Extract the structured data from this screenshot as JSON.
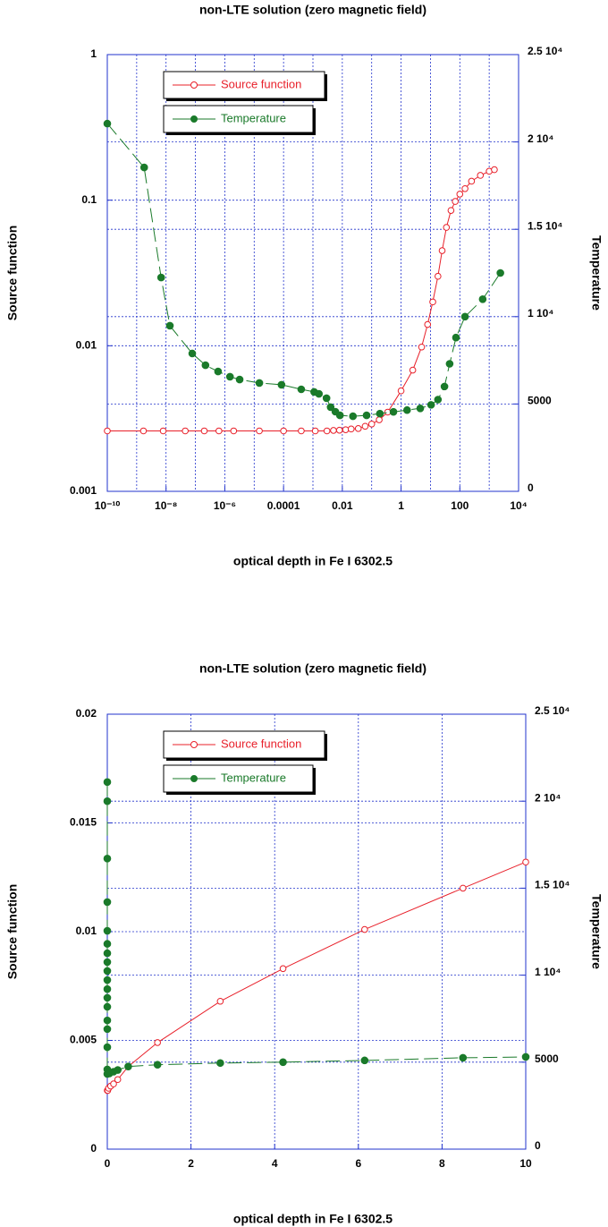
{
  "chart_data": [
    {
      "type": "line",
      "title": "non-LTE solution (zero magnetic field)",
      "xlabel": "optical depth in Fe I 6302.5",
      "ylabel": "Source function",
      "y2label": "Temperature",
      "xlog": true,
      "ylog": true,
      "grid": true,
      "legend": "upper left",
      "xlim": [
        1e-10,
        10000
      ],
      "xticks": [
        {
          "value": 1e-10,
          "label": "10⁻¹⁰"
        },
        {
          "value": 1e-08,
          "label": "10⁻⁸"
        },
        {
          "value": 1e-06,
          "label": "10⁻⁶"
        },
        0.0001,
        0.01,
        1,
        100,
        {
          "value": 10000,
          "label": "10⁴"
        }
      ],
      "ylim": [
        0.001,
        1
      ],
      "yticks": [
        0.001,
        0.01,
        0.1,
        1
      ],
      "y2lim": [
        0,
        25000
      ],
      "y2ticks": [
        0,
        5000,
        {
          "value": 10000,
          "label": "1 10⁴"
        },
        {
          "value": 15000,
          "label": "1.5 10⁴"
        },
        {
          "value": 20000,
          "label": "2 10⁴"
        },
        {
          "value": 25000,
          "label": "2.5 10⁴"
        }
      ],
      "series": [
        {
          "name": "Source function",
          "color": "#e8202a",
          "marker": "open-circle",
          "line_style": "solid",
          "x": [
            1e-10,
            1.7e-09,
            8e-09,
            4.5e-08,
            2e-07,
            6.3e-07,
            2e-06,
            1.5e-05,
            0.0001,
            0.0004,
            0.0012,
            0.003,
            0.005,
            0.008,
            0.013,
            0.02,
            0.035,
            0.06,
            0.1,
            0.18,
            0.35,
            1,
            2.5,
            5,
            8,
            12,
            18,
            25,
            35,
            50,
            70,
            100,
            150,
            250,
            500,
            1000,
            1500
          ],
          "values": [
            0.0026,
            0.0026,
            0.0026,
            0.0026,
            0.0026,
            0.0026,
            0.0026,
            0.0026,
            0.0026,
            0.0026,
            0.0026,
            0.0026,
            0.00262,
            0.00263,
            0.00265,
            0.00268,
            0.0027,
            0.0028,
            0.0029,
            0.0031,
            0.0035,
            0.0049,
            0.0068,
            0.0098,
            0.014,
            0.02,
            0.03,
            0.045,
            0.065,
            0.085,
            0.098,
            0.11,
            0.12,
            0.135,
            0.148,
            0.158,
            0.162
          ]
        },
        {
          "name": "Temperature",
          "color": "#1a7a2a",
          "marker": "filled-circle",
          "line_style": "dashed",
          "axis": "y2",
          "x": [
            1e-10,
            1.8e-09,
            6.8e-09,
            1.35e-08,
            7.8e-08,
            2.2e-07,
            5.9e-07,
            1.5e-06,
            3.2e-06,
            1.5e-05,
            8.5e-05,
            0.0004,
            0.0011,
            0.0016,
            0.0029,
            0.004,
            0.0058,
            0.0083,
            0.023,
            0.067,
            0.19,
            0.55,
            1.6,
            4.5,
            10.5,
            18,
            30,
            45,
            74,
            150,
            600,
            2400
          ],
          "values": [
            21050,
            18540,
            12240,
            9480,
            7890,
            7220,
            6860,
            6560,
            6400,
            6200,
            6100,
            5840,
            5690,
            5580,
            5330,
            4820,
            4560,
            4350,
            4300,
            4350,
            4450,
            4550,
            4650,
            4750,
            4950,
            5250,
            6000,
            7300,
            8800,
            10000,
            11000,
            12500
          ]
        }
      ]
    },
    {
      "type": "line",
      "title": "non-LTE solution (zero magnetic field)",
      "xlabel": "optical depth in Fe I 6302.5",
      "ylabel": "Source function",
      "y2label": "Temperature",
      "xlog": false,
      "ylog": false,
      "grid": true,
      "legend": "upper left",
      "xlim": [
        0,
        10
      ],
      "xticks": [
        0,
        2,
        4,
        6,
        8,
        10
      ],
      "ylim": [
        0,
        0.02
      ],
      "yticks": [
        0,
        0.005,
        0.01,
        0.015,
        0.02
      ],
      "y2lim": [
        0,
        25000
      ],
      "y2ticks": [
        0,
        5000,
        {
          "value": 10000,
          "label": "1 10⁴"
        },
        {
          "value": 15000,
          "label": "1.5 10⁴"
        },
        {
          "value": 20000,
          "label": "2 10⁴"
        },
        {
          "value": 25000,
          "label": "2.5 10⁴"
        }
      ],
      "series": [
        {
          "name": "Source function",
          "color": "#e8202a",
          "marker": "open-circle",
          "line_style": "solid",
          "x": [
            0,
            0.01,
            0.03,
            0.08,
            0.15,
            0.25,
            0.5,
            1.2,
            2.7,
            4.2,
            6.15,
            8.5,
            10
          ],
          "values": [
            0.0027,
            0.0027,
            0.0028,
            0.0029,
            0.003,
            0.0032,
            0.0038,
            0.0049,
            0.0068,
            0.0083,
            0.0101,
            0.012,
            0.0132
          ]
        },
        {
          "name": "Temperature",
          "color": "#1a7a2a",
          "marker": "filled-circle",
          "line_style": "dashed",
          "axis": "y2",
          "x": [
            0,
            0,
            0,
            0,
            0,
            0,
            0,
            0,
            0,
            0,
            0,
            0,
            0,
            0,
            0,
            0,
            0,
            0,
            0.05,
            0.15,
            0.25,
            0.5,
            1.2,
            2.7,
            4.2,
            6.15,
            8.5,
            10
          ],
          "values": [
            21100,
            20000,
            16700,
            14200,
            12550,
            11800,
            11260,
            10750,
            10240,
            9720,
            9200,
            8700,
            8180,
            7400,
            6900,
            5860,
            4580,
            4320,
            4350,
            4450,
            4550,
            4750,
            4850,
            4950,
            5000,
            5100,
            5250,
            5300
          ]
        }
      ]
    }
  ]
}
